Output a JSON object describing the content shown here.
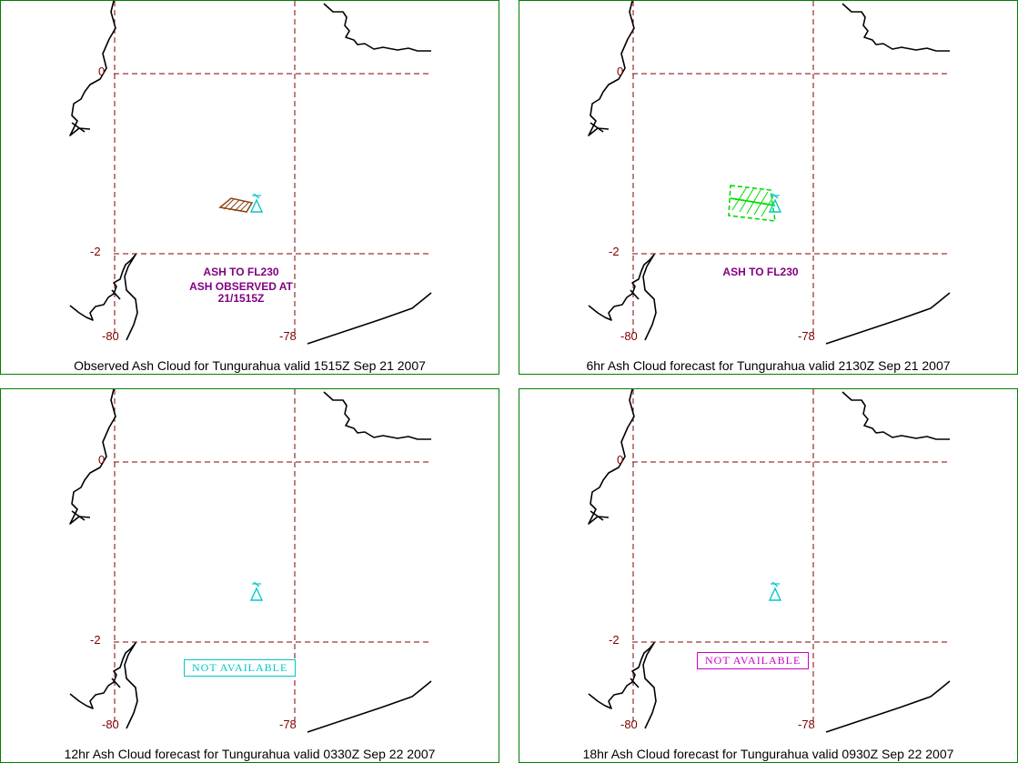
{
  "panels": [
    {
      "caption": "Observed Ash Cloud for Tungurahua valid 1515Z Sep 21 2007",
      "notes": [
        "ASH TO FL230",
        "ASH OBSERVED AT",
        "21/1515Z"
      ],
      "not_available": "",
      "cloud_style": "observed"
    },
    {
      "caption": "6hr Ash Cloud forecast for Tungurahua valid 2130Z Sep 21 2007",
      "notes": [
        "ASH TO FL230"
      ],
      "not_available": "",
      "cloud_style": "forecast"
    },
    {
      "caption": "12hr Ash Cloud forecast for Tungurahua valid 0330Z Sep 22 2007",
      "notes": [],
      "not_available": "NOT AVAILABLE",
      "cloud_style": "none"
    },
    {
      "caption": "18hr Ash Cloud forecast for Tungurahua valid 0930Z Sep 22 2007",
      "notes": [],
      "not_available": "NOT AVAILABLE",
      "cloud_style": "none"
    }
  ],
  "axis_labels": {
    "lat_top": "0",
    "lat_bottom": "-2",
    "lon_left": "-80",
    "lon_right": "-78"
  },
  "icons": {
    "volcano": "volcano-icon"
  },
  "colors": {
    "border": "#008000",
    "grid": "#800000",
    "coast": "#000000",
    "volcano": "#00c8c8",
    "observed_cloud": "#8b4513",
    "forecast_cloud": "#00dd00",
    "note_text": "#800080",
    "na_cyan": "#00c8c8",
    "na_magenta": "#cc00cc"
  }
}
